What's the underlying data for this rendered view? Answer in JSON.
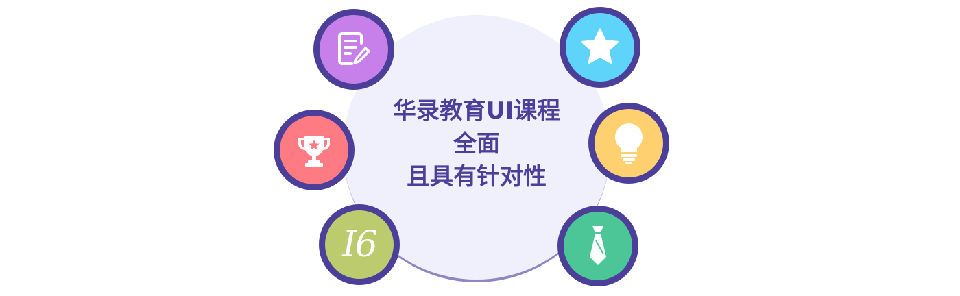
{
  "center": {
    "line1": "华录教育UI课程",
    "line2": "全面",
    "line3": "且具有针对性"
  },
  "badges": [
    {
      "icon": "edit-document-icon",
      "color": "#c77fe9"
    },
    {
      "icon": "trophy-icon",
      "color": "#ff7b84"
    },
    {
      "icon": "number-icon",
      "color": "#bccb6e",
      "text": "I6"
    },
    {
      "icon": "star-icon",
      "color": "#5fd4fb"
    },
    {
      "icon": "lightbulb-icon",
      "color": "#ffd06f"
    },
    {
      "icon": "tie-icon",
      "color": "#4cc597"
    }
  ],
  "colors": {
    "ring_border": "#4b3f9a",
    "center_fill": "#f0effc",
    "center_text": "#4b3f9a"
  }
}
